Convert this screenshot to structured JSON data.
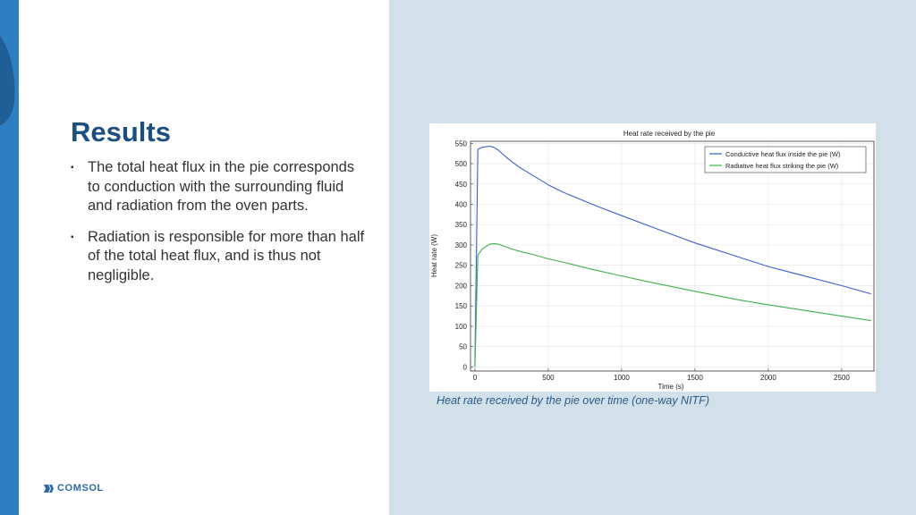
{
  "slide": {
    "title": "Results",
    "bullets": [
      "The total heat flux in the pie corresponds to conduction with the surrounding fluid and radiation from the oven parts.",
      "Radiation is responsible for more than half of the total heat flux, and is thus not negligible."
    ],
    "bullet_marker": "▪",
    "caption": "Heat rate received by the pie over time (one-way NITF)",
    "logo_text": "COMSOL"
  },
  "colors": {
    "accent_bar": "#2e7fc1",
    "right_panel": "#d1e0e9",
    "title": "#1c4e80",
    "conductive_line": "#3a5fd0",
    "radiative_line": "#3cb04a"
  },
  "chart_data": {
    "type": "line",
    "title": "Heat rate received by the pie",
    "xlabel": "Time (s)",
    "ylabel": "Heat rate (W)",
    "xlim": [
      -30,
      2720
    ],
    "ylim": [
      -10,
      555
    ],
    "xticks": [
      0,
      500,
      1000,
      1500,
      2000,
      2500
    ],
    "yticks": [
      0,
      50,
      100,
      150,
      200,
      250,
      300,
      350,
      400,
      450,
      500,
      550
    ],
    "grid": true,
    "legend_position": "top-right",
    "series": [
      {
        "name": "Conductive heat flux inside the pie (W)",
        "color": "#3a5fd0",
        "x": [
          0,
          20,
          50,
          100,
          130,
          160,
          200,
          250,
          300,
          400,
          500,
          600,
          800,
          1000,
          1200,
          1500,
          1800,
          2000,
          2200,
          2500,
          2700
        ],
        "y": [
          0,
          535,
          540,
          543,
          540,
          533,
          520,
          505,
          492,
          470,
          448,
          430,
          400,
          372,
          345,
          305,
          270,
          247,
          228,
          200,
          180
        ]
      },
      {
        "name": "Radiative heat flux striking the pie (W)",
        "color": "#3cb04a",
        "x": [
          0,
          20,
          50,
          100,
          130,
          160,
          200,
          250,
          300,
          400,
          500,
          600,
          800,
          1000,
          1200,
          1500,
          1800,
          2000,
          2200,
          2500,
          2700
        ],
        "y": [
          0,
          275,
          290,
          302,
          303,
          302,
          297,
          290,
          285,
          276,
          266,
          258,
          240,
          224,
          208,
          186,
          165,
          153,
          142,
          125,
          114
        ]
      }
    ]
  }
}
